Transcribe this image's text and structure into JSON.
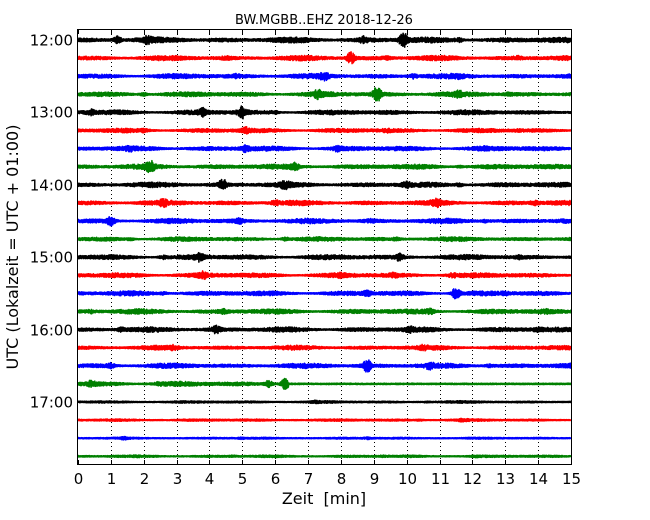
{
  "chart_data": {
    "type": "line",
    "title": "BW.MGBB..EHZ 2018-12-26",
    "xlabel": "Zeit  [min]",
    "ylabel": "UTC (Lokalzeit = UTC + 01:00)",
    "xlim": [
      0,
      15
    ],
    "xticks": [
      0,
      1,
      2,
      3,
      4,
      5,
      6,
      7,
      8,
      9,
      10,
      11,
      12,
      13,
      14,
      15
    ],
    "xtick_labels": [
      "0",
      "1",
      "2",
      "3",
      "4",
      "5",
      "6",
      "7",
      "8",
      "9",
      "10",
      "11",
      "12",
      "13",
      "14",
      "15"
    ],
    "yticks": [
      "12:00",
      "13:00",
      "14:00",
      "15:00",
      "16:00",
      "17:00"
    ],
    "grid": {
      "x": true,
      "y": false,
      "style": "dotted"
    },
    "colors": [
      "#000000",
      "#ff0000",
      "#0000ff",
      "#008000"
    ],
    "series": [
      {
        "start": "12:00",
        "color": "#000000",
        "amp": 1.0,
        "events": [
          [
            1.2,
            1.6
          ],
          [
            2.1,
            1.4
          ],
          [
            8.7,
            1.5
          ],
          [
            9.9,
            2.2
          ],
          [
            11.6,
            1.3
          ]
        ]
      },
      {
        "start": "12:15",
        "color": "#ff0000",
        "amp": 0.9,
        "events": [
          [
            4.5,
            1.2
          ],
          [
            8.3,
            2.1
          ],
          [
            9.4,
            1.2
          ],
          [
            13.4,
            1.2
          ]
        ]
      },
      {
        "start": "12:30",
        "color": "#0000ff",
        "amp": 0.9,
        "events": [
          [
            4.8,
            1.2
          ],
          [
            7.5,
            1.6
          ],
          [
            10.2,
            1.4
          ],
          [
            11.6,
            1.2
          ]
        ]
      },
      {
        "start": "12:45",
        "color": "#008000",
        "amp": 0.9,
        "events": [
          [
            2.0,
            1.3
          ],
          [
            7.3,
            1.6
          ],
          [
            9.1,
            2.4
          ],
          [
            11.6,
            1.4
          ],
          [
            13.1,
            1.2
          ]
        ]
      },
      {
        "start": "13:00",
        "color": "#000000",
        "amp": 0.9,
        "events": [
          [
            0.4,
            1.4
          ],
          [
            3.8,
            1.6
          ],
          [
            5.0,
            2.0
          ],
          [
            6.0,
            1.2
          ]
        ]
      },
      {
        "start": "13:15",
        "color": "#ff0000",
        "amp": 0.8,
        "events": [
          [
            2.0,
            1.2
          ],
          [
            5.1,
            1.5
          ],
          [
            9.4,
            1.2
          ],
          [
            13.4,
            1.1
          ]
        ]
      },
      {
        "start": "13:30",
        "color": "#0000ff",
        "amp": 0.9,
        "events": [
          [
            1.6,
            1.2
          ],
          [
            5.1,
            1.5
          ],
          [
            7.9,
            1.4
          ],
          [
            12.3,
            1.2
          ]
        ]
      },
      {
        "start": "13:45",
        "color": "#008000",
        "amp": 0.9,
        "events": [
          [
            2.2,
            1.9
          ],
          [
            6.6,
            1.6
          ],
          [
            11.6,
            1.2
          ]
        ]
      },
      {
        "start": "14:00",
        "color": "#000000",
        "amp": 0.9,
        "events": [
          [
            4.4,
            2.0
          ],
          [
            6.3,
            1.6
          ],
          [
            10.0,
            1.4
          ],
          [
            11.6,
            1.3
          ]
        ]
      },
      {
        "start": "14:15",
        "color": "#ff0000",
        "amp": 0.9,
        "events": [
          [
            2.6,
            1.4
          ],
          [
            6.0,
            1.4
          ],
          [
            10.9,
            1.5
          ],
          [
            13.9,
            1.3
          ]
        ]
      },
      {
        "start": "14:30",
        "color": "#0000ff",
        "amp": 0.9,
        "events": [
          [
            1.0,
            1.9
          ],
          [
            4.9,
            1.4
          ],
          [
            8.9,
            1.2
          ],
          [
            12.4,
            1.2
          ]
        ]
      },
      {
        "start": "14:45",
        "color": "#008000",
        "amp": 0.8,
        "events": [
          [
            1.6,
            1.2
          ],
          [
            6.3,
            1.3
          ],
          [
            9.7,
            1.2
          ]
        ]
      },
      {
        "start": "15:00",
        "color": "#000000",
        "amp": 0.9,
        "events": [
          [
            2.6,
            1.3
          ],
          [
            3.7,
            1.6
          ],
          [
            9.8,
            1.6
          ],
          [
            13.4,
            1.2
          ]
        ]
      },
      {
        "start": "15:15",
        "color": "#ff0000",
        "amp": 0.9,
        "events": [
          [
            3.8,
            1.6
          ],
          [
            8.0,
            1.2
          ],
          [
            9.6,
            1.3
          ],
          [
            11.4,
            1.3
          ]
        ]
      },
      {
        "start": "15:30",
        "color": "#0000ff",
        "amp": 0.9,
        "events": [
          [
            2.6,
            1.2
          ],
          [
            8.8,
            1.4
          ],
          [
            11.5,
            2.1
          ],
          [
            13.0,
            1.2
          ]
        ]
      },
      {
        "start": "15:45",
        "color": "#008000",
        "amp": 0.9,
        "events": [
          [
            0.4,
            1.2
          ],
          [
            4.4,
            1.3
          ],
          [
            10.7,
            1.4
          ],
          [
            14.2,
            1.2
          ]
        ]
      },
      {
        "start": "16:00",
        "color": "#000000",
        "amp": 0.9,
        "events": [
          [
            1.3,
            1.3
          ],
          [
            4.2,
            1.6
          ],
          [
            10.1,
            1.4
          ],
          [
            14.0,
            1.2
          ]
        ]
      },
      {
        "start": "16:15",
        "color": "#ff0000",
        "amp": 0.8,
        "events": [
          [
            2.9,
            1.3
          ],
          [
            10.5,
            1.3
          ]
        ]
      },
      {
        "start": "16:30",
        "color": "#0000ff",
        "amp": 0.9,
        "events": [
          [
            1.0,
            1.4
          ],
          [
            8.8,
            2.1
          ],
          [
            10.7,
            1.4
          ],
          [
            12.5,
            1.2
          ]
        ]
      },
      {
        "start": "16:45",
        "color": "#008000",
        "amp": 0.9,
        "events": [
          [
            0.4,
            1.4
          ],
          [
            2.5,
            1.2
          ],
          [
            5.8,
            1.6
          ],
          [
            6.3,
            2.0
          ]
        ],
        "quiet_after": 6.4
      },
      {
        "start": "17:00",
        "color": "#000000",
        "amp": 0.45,
        "events": [
          [
            7.2,
            1.3
          ],
          [
            10.6,
            1.2
          ]
        ]
      },
      {
        "start": "17:15",
        "color": "#ff0000",
        "amp": 0.45,
        "events": [
          [
            10.4,
            1.3
          ],
          [
            11.7,
            1.3
          ]
        ]
      },
      {
        "start": "17:30",
        "color": "#0000ff",
        "amp": 0.35,
        "events": [
          [
            1.4,
            1.4
          ],
          [
            5.0,
            1.3
          ],
          [
            8.8,
            1.4
          ]
        ]
      },
      {
        "start": "17:45",
        "color": "#008000",
        "amp": 0.45,
        "events": [
          [
            4.7,
            1.2
          ],
          [
            9.3,
            1.2
          ],
          [
            12.1,
            1.2
          ]
        ]
      }
    ]
  }
}
